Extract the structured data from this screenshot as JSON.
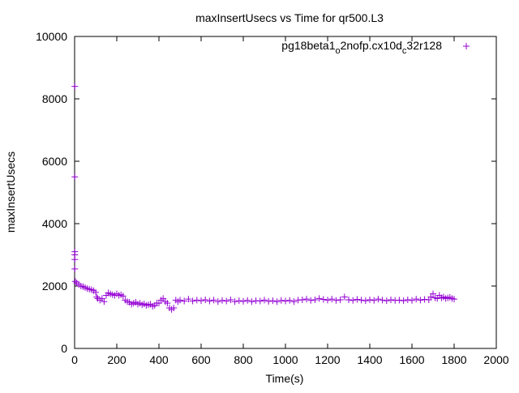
{
  "chart_data": {
    "type": "scatter",
    "title": "maxInsertUsecs vs Time for qr500.L3",
    "xlabel": "Time(s)",
    "ylabel": "maxInsertUsecs",
    "xlim": [
      0,
      2000
    ],
    "ylim": [
      0,
      10000
    ],
    "x_ticks": [
      0,
      200,
      400,
      600,
      800,
      1000,
      1200,
      1400,
      1600,
      1800,
      2000
    ],
    "y_ticks": [
      0,
      2000,
      4000,
      6000,
      8000,
      10000
    ],
    "grid": false,
    "legend_position": "top-right",
    "marker": "+",
    "series_color": "#9400d3",
    "series": [
      {
        "legend": {
          "base": "pg18beta1",
          "sub1": "o",
          "mid": "2nofp.cx10d",
          "sub2": "c",
          "tail": "32r128"
        },
        "points": [
          [
            1,
            8400
          ],
          [
            1,
            5500
          ],
          [
            1,
            3100
          ],
          [
            1,
            3000
          ],
          [
            1,
            2850
          ],
          [
            1,
            2550
          ],
          [
            3,
            2150
          ],
          [
            10,
            2100
          ],
          [
            20,
            2050
          ],
          [
            30,
            2000
          ],
          [
            40,
            1980
          ],
          [
            50,
            1950
          ],
          [
            60,
            1920
          ],
          [
            70,
            1900
          ],
          [
            80,
            1880
          ],
          [
            90,
            1850
          ],
          [
            100,
            1800
          ],
          [
            105,
            1650
          ],
          [
            110,
            1600
          ],
          [
            120,
            1550
          ],
          [
            130,
            1600
          ],
          [
            140,
            1500
          ],
          [
            150,
            1700
          ],
          [
            160,
            1780
          ],
          [
            170,
            1750
          ],
          [
            180,
            1720
          ],
          [
            190,
            1700
          ],
          [
            200,
            1750
          ],
          [
            210,
            1700
          ],
          [
            220,
            1720
          ],
          [
            230,
            1680
          ],
          [
            240,
            1550
          ],
          [
            250,
            1500
          ],
          [
            260,
            1480
          ],
          [
            270,
            1420
          ],
          [
            280,
            1450
          ],
          [
            290,
            1480
          ],
          [
            300,
            1420
          ],
          [
            310,
            1450
          ],
          [
            320,
            1400
          ],
          [
            330,
            1430
          ],
          [
            340,
            1380
          ],
          [
            350,
            1400
          ],
          [
            360,
            1420
          ],
          [
            370,
            1350
          ],
          [
            380,
            1380
          ],
          [
            390,
            1450
          ],
          [
            400,
            1450
          ],
          [
            410,
            1550
          ],
          [
            420,
            1600
          ],
          [
            430,
            1500
          ],
          [
            440,
            1450
          ],
          [
            450,
            1300
          ],
          [
            460,
            1250
          ],
          [
            470,
            1300
          ],
          [
            480,
            1550
          ],
          [
            490,
            1500
          ],
          [
            500,
            1550
          ],
          [
            520,
            1520
          ],
          [
            540,
            1580
          ],
          [
            560,
            1520
          ],
          [
            580,
            1550
          ],
          [
            600,
            1530
          ],
          [
            620,
            1560
          ],
          [
            640,
            1520
          ],
          [
            660,
            1550
          ],
          [
            680,
            1500
          ],
          [
            700,
            1540
          ],
          [
            720,
            1520
          ],
          [
            740,
            1560
          ],
          [
            760,
            1500
          ],
          [
            780,
            1530
          ],
          [
            800,
            1510
          ],
          [
            820,
            1540
          ],
          [
            840,
            1500
          ],
          [
            860,
            1530
          ],
          [
            880,
            1520
          ],
          [
            900,
            1550
          ],
          [
            920,
            1510
          ],
          [
            940,
            1530
          ],
          [
            960,
            1500
          ],
          [
            980,
            1540
          ],
          [
            1000,
            1520
          ],
          [
            1020,
            1540
          ],
          [
            1040,
            1500
          ],
          [
            1060,
            1550
          ],
          [
            1080,
            1560
          ],
          [
            1100,
            1580
          ],
          [
            1120,
            1540
          ],
          [
            1140,
            1560
          ],
          [
            1160,
            1600
          ],
          [
            1180,
            1570
          ],
          [
            1200,
            1550
          ],
          [
            1220,
            1580
          ],
          [
            1240,
            1540
          ],
          [
            1260,
            1560
          ],
          [
            1280,
            1650
          ],
          [
            1300,
            1560
          ],
          [
            1320,
            1540
          ],
          [
            1340,
            1570
          ],
          [
            1360,
            1550
          ],
          [
            1380,
            1530
          ],
          [
            1400,
            1560
          ],
          [
            1420,
            1540
          ],
          [
            1440,
            1580
          ],
          [
            1460,
            1550
          ],
          [
            1480,
            1530
          ],
          [
            1500,
            1560
          ],
          [
            1520,
            1540
          ],
          [
            1540,
            1550
          ],
          [
            1560,
            1530
          ],
          [
            1580,
            1560
          ],
          [
            1600,
            1540
          ],
          [
            1620,
            1580
          ],
          [
            1640,
            1550
          ],
          [
            1660,
            1570
          ],
          [
            1680,
            1560
          ],
          [
            1690,
            1650
          ],
          [
            1700,
            1750
          ],
          [
            1710,
            1620
          ],
          [
            1720,
            1600
          ],
          [
            1730,
            1700
          ],
          [
            1740,
            1620
          ],
          [
            1750,
            1650
          ],
          [
            1760,
            1600
          ],
          [
            1770,
            1620
          ],
          [
            1780,
            1640
          ],
          [
            1790,
            1600
          ],
          [
            1800,
            1580
          ]
        ]
      }
    ]
  }
}
